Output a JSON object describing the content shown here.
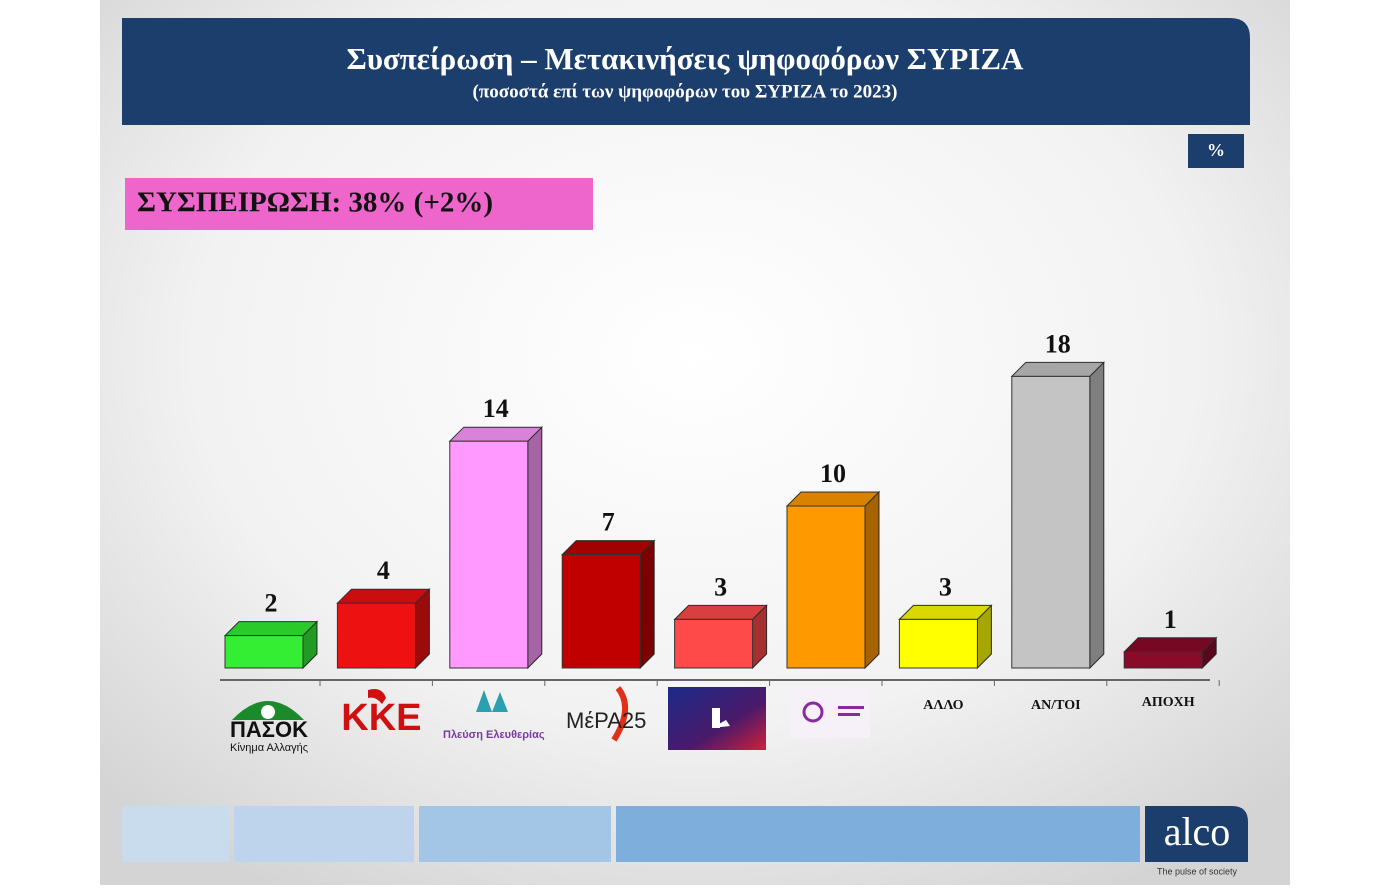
{
  "chart_data": {
    "type": "bar3d",
    "title": "Συσπείρωση – Μετακινήσεις ψηφοφόρων ΣΥΡΙΖΑ",
    "subtitle": "(ποσοστά επί των ψηφοφόρων του ΣΥΡΙΖΑ το 2023)",
    "unit_badge": "%",
    "highlight": "ΣΥΣΠΕΙΡΩΣΗ: 38% (+2%)",
    "categories": [
      "ΠΑΣΟΚ",
      "ΚΚΕ",
      "Πλεύση Ελευθερίας",
      "ΜέΡΑ25",
      null,
      null,
      "ΑΛΛΟ",
      "ΑΝ/ΤΟΙ",
      "ΑΠΟΧΗ"
    ],
    "category_sublabels": [
      "Κίνημα Αλλαγής",
      null,
      null,
      null,
      null,
      null,
      null,
      null,
      null
    ],
    "values": [
      2,
      4,
      14,
      7,
      3,
      10,
      3,
      18,
      1
    ],
    "colors": [
      "#33ee33",
      "#ee1111",
      "#ff99ff",
      "#c00000",
      "#ff4a4a",
      "#ff9900",
      "#ffff00",
      "#c4c4c4",
      "#8b0a2a"
    ],
    "brand": "alco",
    "tagline": "The pulse of society"
  }
}
